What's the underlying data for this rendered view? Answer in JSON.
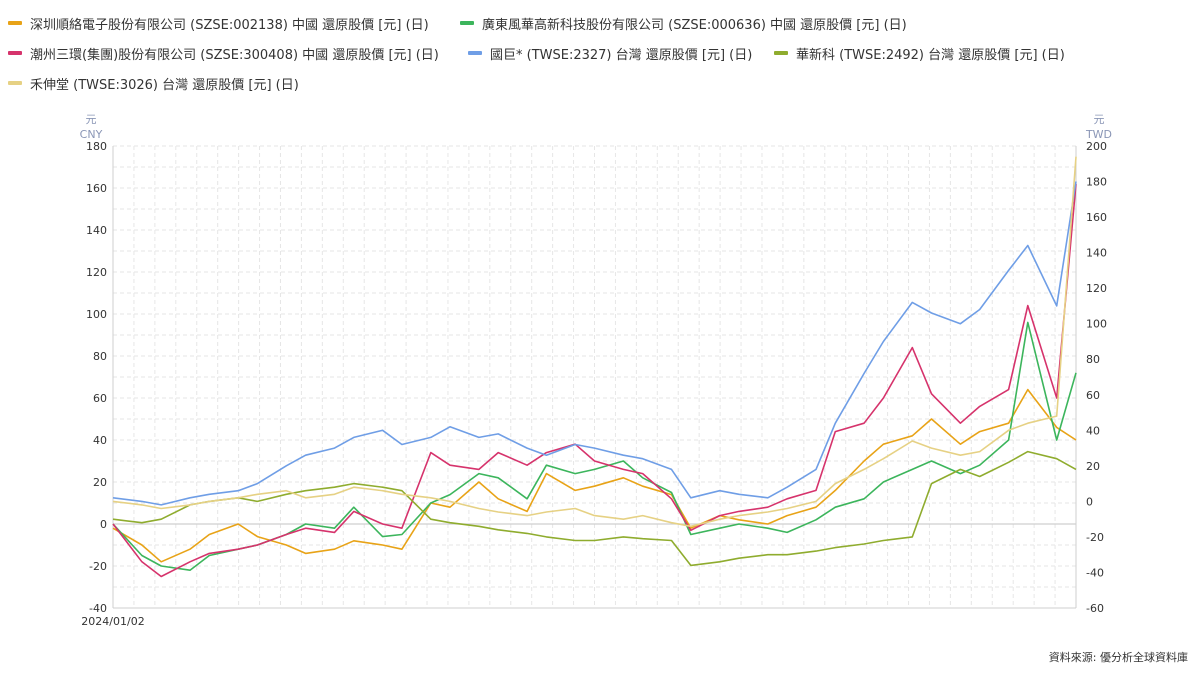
{
  "source": "資料來源: 優分析全球資料庫",
  "chart_data": {
    "type": "line",
    "x_start_label": "2024/01/02",
    "left_axis": {
      "unit_top": "元",
      "unit_bottom": "CNY",
      "min": -40,
      "max": 180,
      "ticks": [
        180,
        160,
        140,
        120,
        100,
        80,
        60,
        40,
        20,
        0,
        -20,
        -40
      ]
    },
    "right_axis": {
      "unit_top": "元",
      "unit_bottom": "TWD",
      "min": -60,
      "max": 200,
      "ticks": [
        200,
        180,
        160,
        140,
        120,
        100,
        80,
        60,
        40,
        20,
        0,
        -20,
        -40,
        -60
      ]
    },
    "grid": true,
    "legend_placement": "top-left",
    "x": [
      0,
      3,
      5,
      8,
      10,
      13,
      15,
      18,
      20,
      23,
      25,
      28,
      30,
      33,
      35,
      38,
      40,
      43,
      45,
      48,
      50,
      53,
      55,
      58,
      60,
      63,
      65,
      68,
      70,
      73,
      75,
      78,
      80,
      83,
      85,
      88,
      90,
      93,
      95,
      98,
      100
    ],
    "series": [
      {
        "name": "深圳順絡電子股份有限公司 (SZSE:002138) 中國 還原股價 [元] (日)",
        "color": "#e8a317",
        "axis": "left",
        "values": [
          -2,
          -10,
          -18,
          -12,
          -5,
          0,
          -6,
          -10,
          -14,
          -12,
          -8,
          -10,
          -12,
          10,
          8,
          20,
          12,
          6,
          24,
          16,
          18,
          22,
          18,
          14,
          -2,
          4,
          2,
          0,
          4,
          8,
          16,
          30,
          38,
          42,
          50,
          38,
          44,
          48,
          64,
          46,
          40
        ]
      },
      {
        "name": "廣東風華高新科技股份有限公司 (SZSE:000636) 中國 還原股價 [元] (日)",
        "color": "#3cb55c",
        "axis": "left",
        "values": [
          0,
          -15,
          -20,
          -22,
          -15,
          -12,
          -10,
          -5,
          0,
          -2,
          8,
          -6,
          -5,
          10,
          14,
          24,
          22,
          12,
          28,
          24,
          26,
          30,
          22,
          15,
          -5,
          -2,
          0,
          -2,
          -4,
          2,
          8,
          12,
          20,
          26,
          30,
          24,
          28,
          40,
          96,
          40,
          72
        ]
      },
      {
        "name": "潮州三環(集團)股份有限公司 (SZSE:300408) 中國 還原股價 [元] (日)",
        "color": "#d6336c",
        "axis": "left",
        "values": [
          0,
          -18,
          -25,
          -18,
          -14,
          -12,
          -10,
          -5,
          -2,
          -4,
          6,
          0,
          -2,
          34,
          28,
          26,
          34,
          28,
          34,
          38,
          30,
          26,
          24,
          12,
          -3,
          4,
          6,
          8,
          12,
          16,
          44,
          48,
          60,
          84,
          62,
          48,
          56,
          64,
          104,
          60,
          162
        ]
      },
      {
        "name": "國巨* (TWSE:2327) 台灣 還原股價 [元] (日)",
        "color": "#6f9ee6",
        "axis": "right",
        "values": [
          2,
          0,
          -2,
          2,
          4,
          6,
          10,
          20,
          26,
          30,
          36,
          40,
          32,
          36,
          42,
          36,
          38,
          30,
          26,
          32,
          30,
          26,
          24,
          18,
          2,
          6,
          4,
          2,
          8,
          18,
          44,
          72,
          90,
          112,
          106,
          100,
          108,
          130,
          144,
          110,
          180
        ]
      },
      {
        "name": "華新科 (TWSE:2492) 台灣 還原股價 [元] (日)",
        "color": "#8fac2e",
        "axis": "right",
        "values": [
          -10,
          -12,
          -10,
          -2,
          0,
          2,
          0,
          4,
          6,
          8,
          10,
          8,
          6,
          -10,
          -12,
          -14,
          -16,
          -18,
          -20,
          -22,
          -22,
          -20,
          -21,
          -22,
          -36,
          -34,
          -32,
          -30,
          -30,
          -28,
          -26,
          -24,
          -22,
          -20,
          10,
          18,
          14,
          22,
          28,
          24,
          18
        ]
      },
      {
        "name": "禾伸堂 (TWSE:3026) 台灣 還原股價 [元] (日)",
        "color": "#e6d184",
        "axis": "right",
        "values": [
          0,
          -2,
          -4,
          -2,
          0,
          2,
          4,
          6,
          2,
          4,
          8,
          6,
          4,
          2,
          0,
          -4,
          -6,
          -8,
          -6,
          -4,
          -8,
          -10,
          -8,
          -12,
          -14,
          -10,
          -8,
          -6,
          -4,
          0,
          10,
          18,
          24,
          34,
          30,
          26,
          28,
          40,
          44,
          48,
          194
        ]
      }
    ]
  }
}
